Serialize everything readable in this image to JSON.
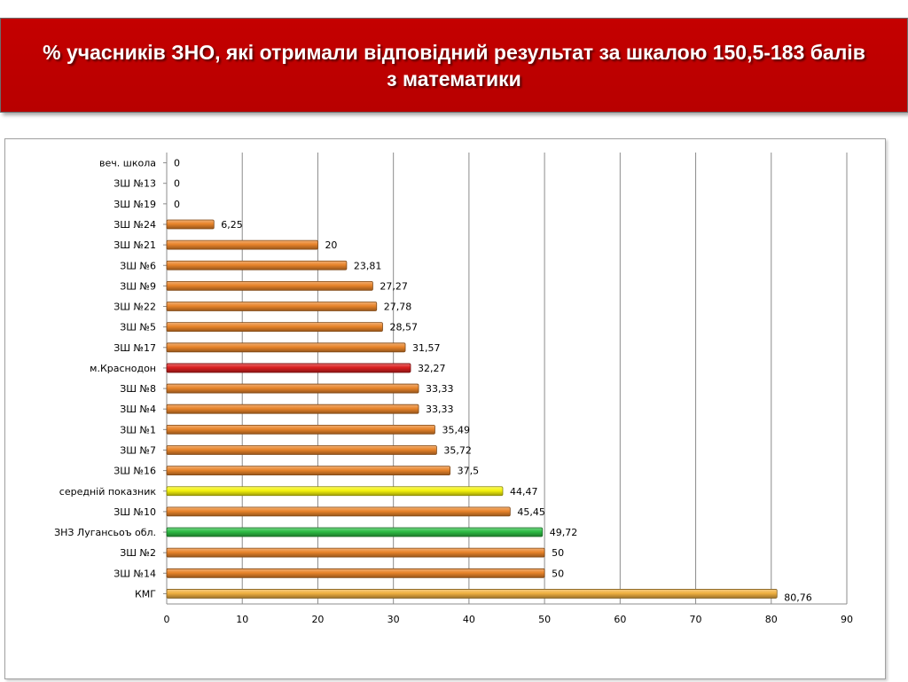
{
  "title": "% учасників ЗНО, які отримали відповідний результат за шкалою 150,5-183 балів з математики",
  "colors": {
    "default_bar": "#e8842a",
    "highlight_city": "#d91f1f",
    "highlight_average": "#f4f20c",
    "highlight_region": "#2cbc44",
    "banner": "#c00000"
  },
  "chart_data": {
    "type": "bar",
    "orientation": "horizontal",
    "xlim": [
      0,
      90
    ],
    "xticks": [
      0,
      10,
      20,
      30,
      40,
      50,
      60,
      70,
      80,
      90
    ],
    "grid": true,
    "categories": [
      "веч. школа",
      "ЗШ №13",
      "ЗШ №19",
      "ЗШ №24",
      "ЗШ №21",
      "ЗШ №6",
      "ЗШ №9",
      "ЗШ №22",
      "ЗШ №5",
      "ЗШ №17",
      "м.Краснодон",
      "ЗШ №8",
      "ЗШ №4",
      "ЗШ №1",
      "ЗШ №7",
      "ЗШ №16",
      "середній показник",
      "ЗШ №10",
      "ЗНЗ Лугансьоъ обл.",
      "ЗШ №2",
      "ЗШ №14",
      "КМГ"
    ],
    "values": [
      0,
      0,
      0,
      6.25,
      20,
      23.81,
      27.27,
      27.78,
      28.57,
      31.57,
      32.27,
      33.33,
      33.33,
      35.49,
      35.72,
      37.5,
      44.47,
      45.45,
      49.72,
      50,
      50,
      80.76
    ],
    "value_labels": [
      "0",
      "0",
      "0",
      "6,25",
      "20",
      "23,81",
      "27,27",
      "27,78",
      "28,57",
      "31,57",
      "32,27",
      "33,33",
      "33,33",
      "35,49",
      "35,72",
      "37,5",
      "44,47",
      "45,45",
      "49,72",
      "50",
      "50",
      "80,76"
    ],
    "bar_colors": [
      "#e8842a",
      "#e8842a",
      "#e8842a",
      "#e8842a",
      "#e8842a",
      "#e8842a",
      "#e8842a",
      "#e8842a",
      "#e8842a",
      "#e8842a",
      "#d91f1f",
      "#e8842a",
      "#e8842a",
      "#e8842a",
      "#e8842a",
      "#e8842a",
      "#f4f20c",
      "#e8842a",
      "#2cbc44",
      "#e8842a",
      "#e8842a",
      "#f0b040"
    ]
  }
}
